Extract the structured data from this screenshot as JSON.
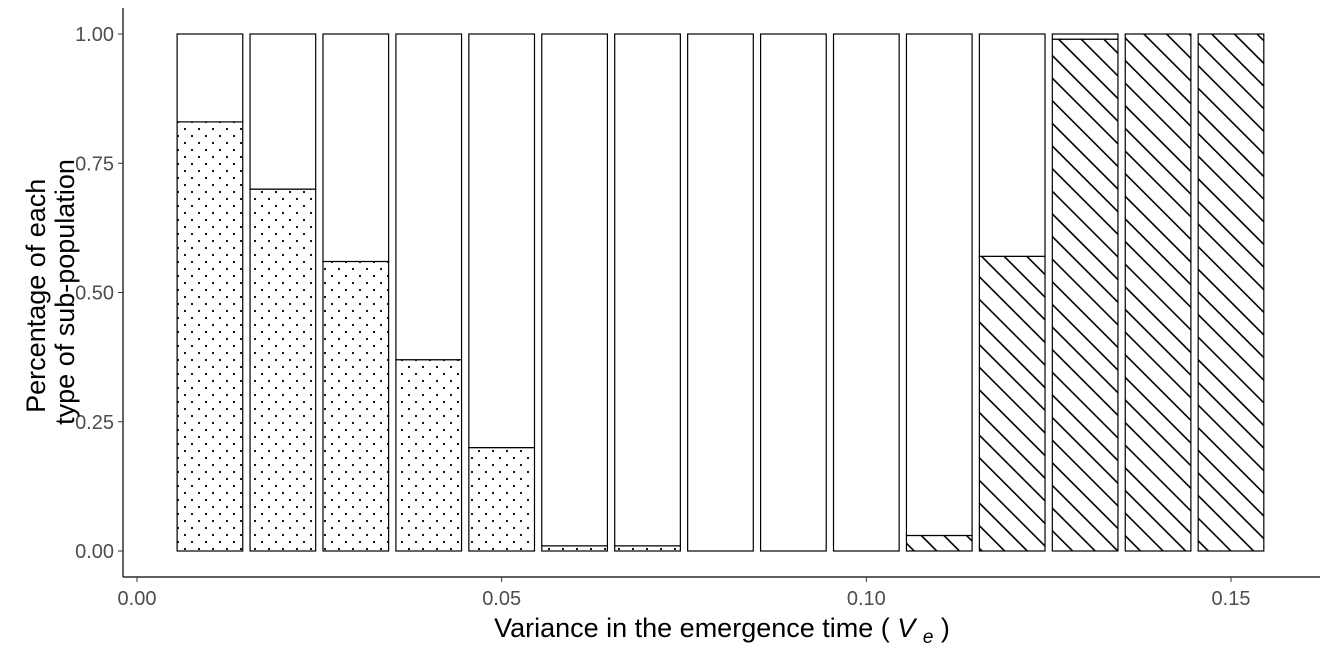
{
  "chart_data": {
    "type": "bar",
    "stacked": true,
    "xlabel": "Variance in the emergence time",
    "xlabel_symbol": "V",
    "xlabel_subscript": "e",
    "ylabel": [
      "Percentage of each",
      "type of sub-population"
    ],
    "xlim": [
      0.0,
      0.16
    ],
    "ylim": [
      0.0,
      1.0
    ],
    "x_ticks": [
      0.0,
      0.05,
      0.1,
      0.15
    ],
    "x_tick_labels": [
      "0.00",
      "0.05",
      "0.10",
      "0.15"
    ],
    "y_ticks": [
      0.0,
      0.25,
      0.5,
      0.75,
      1.0
    ],
    "y_tick_labels": [
      "0.00",
      "0.25",
      "0.50",
      "0.75",
      "1.00"
    ],
    "grid": false,
    "legend": "none",
    "x": [
      0.01,
      0.02,
      0.03,
      0.04,
      0.05,
      0.06,
      0.07,
      0.08,
      0.09,
      0.1,
      0.11,
      0.12,
      0.13,
      0.14,
      0.15
    ],
    "series": [
      {
        "pattern": "dots",
        "values": [
          0.83,
          0.7,
          0.56,
          0.37,
          0.2,
          0.01,
          0.01,
          0,
          0,
          0,
          0,
          0,
          0,
          0,
          0
        ]
      },
      {
        "pattern": "stripes",
        "values": [
          0,
          0,
          0,
          0,
          0,
          0,
          0,
          0,
          0,
          0,
          0.03,
          0.57,
          0.99,
          1.0,
          1.0
        ]
      },
      {
        "pattern": "none",
        "values": [
          0.17,
          0.3,
          0.44,
          0.63,
          0.8,
          0.99,
          0.99,
          1.0,
          1.0,
          1.0,
          0.97,
          0.43,
          0.01,
          0,
          0
        ]
      }
    ],
    "colors": {
      "fill": "#ffffff",
      "stroke": "#000000",
      "tick_text": "#4d4d4d"
    }
  }
}
